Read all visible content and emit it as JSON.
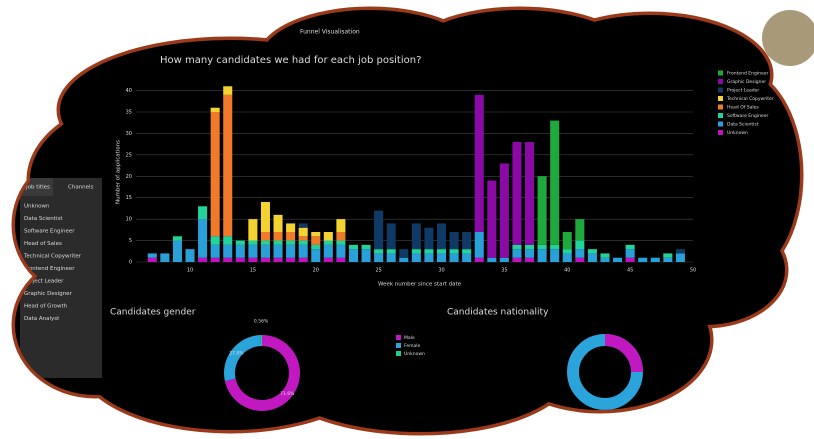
{
  "header": {
    "title": "Funnel Visualisation"
  },
  "sidebar": {
    "tabs": [
      "Job titles",
      "Channels"
    ],
    "items": [
      "Unknown",
      "Data Scientist",
      "Software Engineer",
      "Head of Sales",
      "Technical Copywriter",
      "Frontend Engineer",
      "Project Leader",
      "Graphic Designer",
      "Head of Growth",
      "Data Analyst"
    ]
  },
  "chart_data": [
    {
      "type": "bar",
      "stacked": true,
      "title": "How many candidates we had for each job position?",
      "x_label": "Week number since start date",
      "y_label": "Number of applications",
      "x": [
        7,
        8,
        9,
        10,
        11,
        12,
        13,
        14,
        15,
        16,
        17,
        18,
        19,
        20,
        21,
        22,
        23,
        24,
        25,
        26,
        27,
        28,
        29,
        30,
        31,
        32,
        33,
        34,
        35,
        36,
        37,
        38,
        39,
        40,
        41,
        42,
        43,
        44,
        45,
        46,
        47,
        48,
        49
      ],
      "xlim": [
        6.5,
        50
      ],
      "xticks": [
        10,
        15,
        20,
        25,
        30,
        35,
        40,
        45,
        50
      ],
      "ylim": [
        0,
        42
      ],
      "yticks": [
        0,
        5,
        10,
        15,
        20,
        25,
        30,
        35,
        40
      ],
      "grid": true,
      "series": [
        {
          "name": "Unknown",
          "color": "#c012c0",
          "values": [
            1,
            0,
            0,
            0,
            1,
            1,
            1,
            1,
            1,
            1,
            1,
            1,
            1,
            0,
            1,
            1,
            0,
            0,
            0,
            0,
            0,
            0,
            0,
            0,
            0,
            0,
            1,
            0,
            0,
            1,
            1,
            0,
            0,
            0,
            1,
            0,
            0,
            0,
            1,
            0,
            0,
            0,
            0
          ]
        },
        {
          "name": "Data Scientist",
          "color": "#2aa0d8",
          "values": [
            1,
            2,
            5,
            3,
            9,
            3,
            3,
            3,
            3,
            3,
            3,
            3,
            3,
            3,
            3,
            3,
            3,
            3,
            2,
            2,
            1,
            2,
            2,
            2,
            2,
            2,
            6,
            1,
            1,
            2,
            2,
            3,
            3,
            2,
            2,
            2,
            1,
            1,
            2,
            1,
            1,
            1,
            2
          ]
        },
        {
          "name": "Software Engineer",
          "color": "#22d39a",
          "values": [
            0,
            0,
            1,
            0,
            3,
            2,
            2,
            1,
            1,
            1,
            1,
            1,
            1,
            1,
            1,
            1,
            1,
            1,
            1,
            1,
            0,
            1,
            1,
            1,
            1,
            1,
            0,
            0,
            0,
            1,
            1,
            1,
            1,
            1,
            2,
            1,
            1,
            0,
            1,
            0,
            0,
            1,
            0
          ]
        },
        {
          "name": "Head Of Sales",
          "color": "#f07a2a",
          "values": [
            0,
            0,
            0,
            0,
            0,
            29,
            33,
            0,
            0,
            2,
            2,
            2,
            1,
            2,
            0,
            2,
            0,
            0,
            0,
            0,
            0,
            0,
            0,
            0,
            0,
            0,
            0,
            0,
            0,
            0,
            0,
            0,
            0,
            0,
            0,
            0,
            0,
            0,
            0,
            0,
            0,
            0,
            0
          ]
        },
        {
          "name": "Technical Copywriter",
          "color": "#f3d332",
          "values": [
            0,
            0,
            0,
            0,
            0,
            1,
            2,
            0,
            5,
            7,
            4,
            2,
            2,
            1,
            2,
            3,
            0,
            0,
            0,
            0,
            0,
            0,
            0,
            0,
            0,
            0,
            0,
            0,
            0,
            0,
            0,
            0,
            0,
            0,
            0,
            0,
            0,
            0,
            0,
            0,
            0,
            0,
            0
          ]
        },
        {
          "name": "Project Leader",
          "color": "#0f3a66",
          "values": [
            0,
            0,
            0,
            0,
            0,
            0,
            0,
            0,
            0,
            0,
            0,
            0,
            1,
            0,
            0,
            0,
            0,
            0,
            9,
            6,
            2,
            6,
            5,
            6,
            4,
            4,
            0,
            0,
            0,
            0,
            0,
            0,
            0,
            0,
            0,
            0,
            0,
            0,
            0,
            0,
            0,
            0,
            1
          ]
        },
        {
          "name": "Graphic Designer",
          "color": "#8a0aa6",
          "values": [
            0,
            0,
            0,
            0,
            0,
            0,
            0,
            0,
            0,
            0,
            0,
            0,
            0,
            0,
            0,
            0,
            0,
            0,
            0,
            0,
            0,
            0,
            0,
            0,
            0,
            0,
            32,
            18,
            22,
            24,
            24,
            0,
            0,
            0,
            0,
            0,
            0,
            0,
            0,
            0,
            0,
            0,
            0
          ]
        },
        {
          "name": "Frontend Engineer",
          "color": "#1fa83c",
          "values": [
            0,
            0,
            0,
            0,
            0,
            0,
            0,
            0,
            0,
            0,
            0,
            0,
            0,
            0,
            0,
            0,
            0,
            0,
            0,
            0,
            0,
            0,
            0,
            0,
            0,
            0,
            0,
            0,
            0,
            0,
            0,
            16,
            29,
            4,
            5,
            0,
            0,
            0,
            0,
            0,
            0,
            0,
            0
          ]
        }
      ]
    },
    {
      "type": "donut",
      "title": "Candidates gender",
      "categories": [
        "Male",
        "Female",
        "Unknown"
      ],
      "values": [
        71.6,
        27.8,
        0.56
      ],
      "value_labels": [
        "71.6%",
        "27.8%",
        "0.56%"
      ],
      "colors": [
        "#c118c1",
        "#2ba4dc",
        "#18d08a"
      ]
    },
    {
      "type": "title-only",
      "title": "Candidates nationality"
    }
  ]
}
